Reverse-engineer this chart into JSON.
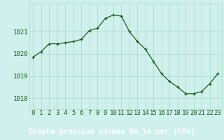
{
  "x": [
    0,
    1,
    2,
    3,
    4,
    5,
    6,
    7,
    8,
    9,
    10,
    11,
    12,
    13,
    14,
    15,
    16,
    17,
    18,
    19,
    20,
    21,
    22,
    23
  ],
  "y": [
    1019.85,
    1020.1,
    1020.45,
    1020.45,
    1020.5,
    1020.55,
    1020.65,
    1021.05,
    1021.15,
    1021.6,
    1021.75,
    1021.7,
    1021.0,
    1020.55,
    1020.2,
    1019.65,
    1019.1,
    1018.75,
    1018.5,
    1018.2,
    1018.2,
    1018.3,
    1018.65,
    1019.1
  ],
  "line_color": "#1a5c1a",
  "marker": "+",
  "bg_color": "#cff0ec",
  "label_bg_color": "#2d8c4e",
  "grid_color": "#aaddcc",
  "xlabel": "Graphe pression niveau de la mer (hPa)",
  "xtick_labels": [
    "0",
    "1",
    "2",
    "3",
    "4",
    "5",
    "6",
    "7",
    "8",
    "9",
    "10",
    "11",
    "12",
    "13",
    "14",
    "15",
    "16",
    "17",
    "18",
    "19",
    "20",
    "21",
    "22",
    "23"
  ],
  "yticks": [
    1018,
    1019,
    1020,
    1021
  ],
  "ylim": [
    1017.5,
    1022.3
  ],
  "xlim": [
    -0.5,
    23.5
  ],
  "tick_fontsize": 6.5,
  "label_fontsize": 7.5
}
